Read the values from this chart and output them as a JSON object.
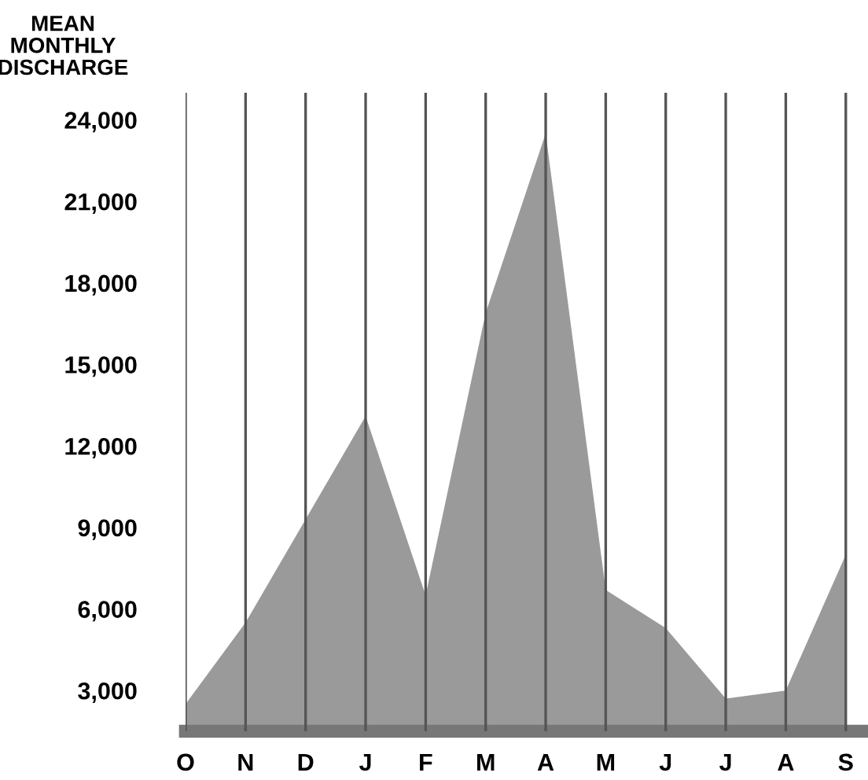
{
  "chart_data": {
    "type": "area",
    "ylabel": "MEAN\nMONTHLY\nDISCHARGE",
    "categories": [
      "O",
      "N",
      "D",
      "J",
      "F",
      "M",
      "A",
      "M",
      "J",
      "J",
      "A",
      "S"
    ],
    "values": [
      2500,
      5500,
      9300,
      13100,
      6500,
      16900,
      23500,
      6700,
      5300,
      2700,
      3000,
      8000
    ],
    "color": "#9a9a9a",
    "ylim": [
      1500,
      25000
    ],
    "yticks": [
      {
        "value": 3000,
        "label": "3,000"
      },
      {
        "value": 6000,
        "label": "6,000"
      },
      {
        "value": 9000,
        "label": "9,000"
      },
      {
        "value": 12000,
        "label": "12,000"
      },
      {
        "value": 15000,
        "label": "15,000"
      },
      {
        "value": 18000,
        "label": "18,000"
      },
      {
        "value": 21000,
        "label": "21,000"
      },
      {
        "value": 24000,
        "label": "24,000"
      }
    ],
    "grid": "x"
  }
}
